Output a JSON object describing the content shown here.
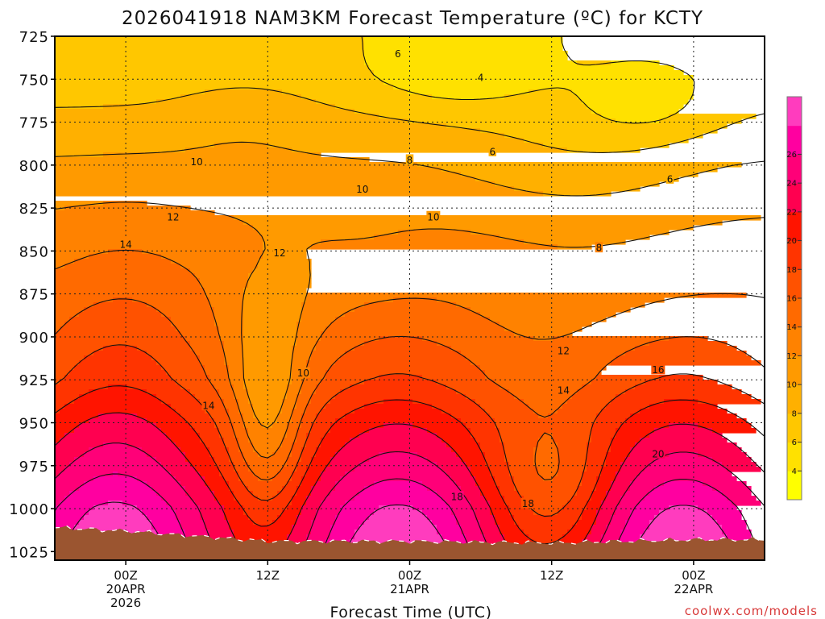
{
  "header": {
    "title": "2026041918 NAM3KM Forecast Temperature (ºC) for KCTY"
  },
  "footer": {
    "credit": "coolwx.com/models"
  },
  "colors": {
    "ground": "#9b5530",
    "contour": "#111111",
    "gridline": "#222222"
  },
  "chart_data": {
    "type": "heatmap",
    "title": "2026041918 NAM3KM Forecast Temperature (ºC) for KCTY",
    "xlabel": "Forecast Time (UTC)",
    "ylabel": "",
    "x_range_hours": [
      -6,
      54
    ],
    "y_range_hPa": [
      725,
      1030
    ],
    "y_ticks": [
      725,
      750,
      775,
      800,
      825,
      850,
      875,
      900,
      925,
      950,
      975,
      1000,
      1025
    ],
    "x_ticks": [
      {
        "hour": 0,
        "lines": [
          "00Z",
          "20APR",
          "2026"
        ]
      },
      {
        "hour": 12,
        "lines": [
          "12Z"
        ]
      },
      {
        "hour": 24,
        "lines": [
          "00Z",
          "21APR"
        ]
      },
      {
        "hour": 36,
        "lines": [
          "12Z"
        ]
      },
      {
        "hour": 48,
        "lines": [
          "00Z",
          "22APR"
        ]
      }
    ],
    "colorbar": {
      "labels": [
        4,
        6,
        8,
        10,
        12,
        14,
        16,
        18,
        20,
        22,
        24,
        26
      ],
      "bands": [
        {
          "min": 2,
          "max": 4,
          "color": "#ffff00"
        },
        {
          "min": 4,
          "max": 6,
          "color": "#ffe100"
        },
        {
          "min": 6,
          "max": 8,
          "color": "#ffc700"
        },
        {
          "min": 8,
          "max": 10,
          "color": "#ffb000"
        },
        {
          "min": 10,
          "max": 12,
          "color": "#ff9a00"
        },
        {
          "min": 12,
          "max": 14,
          "color": "#ff8200"
        },
        {
          "min": 14,
          "max": 16,
          "color": "#ff6a00"
        },
        {
          "min": 16,
          "max": 18,
          "color": "#ff5200"
        },
        {
          "min": 18,
          "max": 20,
          "color": "#ff3400"
        },
        {
          "min": 20,
          "max": 22,
          "color": "#ff1400"
        },
        {
          "min": 22,
          "max": 24,
          "color": "#ff0050"
        },
        {
          "min": 24,
          "max": 26,
          "color": "#ff0078"
        },
        {
          "min": 26,
          "max": 28,
          "color": "#ff00a0"
        },
        {
          "min": 28,
          "max": 30,
          "color": "#ff3cbe"
        }
      ]
    },
    "contour_labels": [
      {
        "text": "6",
        "hour": 23,
        "p": 735
      },
      {
        "text": "4",
        "hour": 30,
        "p": 749
      },
      {
        "text": "6",
        "hour": 31,
        "p": 792
      },
      {
        "text": "8",
        "hour": 24,
        "p": 797
      },
      {
        "text": "10",
        "hour": 6,
        "p": 798
      },
      {
        "text": "10",
        "hour": 20,
        "p": 814
      },
      {
        "text": "10",
        "hour": 26,
        "p": 830
      },
      {
        "text": "12",
        "hour": 4,
        "p": 830
      },
      {
        "text": "14",
        "hour": 0,
        "p": 846
      },
      {
        "text": "12",
        "hour": 13,
        "p": 851
      },
      {
        "text": "8",
        "hour": 40,
        "p": 848
      },
      {
        "text": "6",
        "hour": 46,
        "p": 808
      },
      {
        "text": "12",
        "hour": 37,
        "p": 908
      },
      {
        "text": "10",
        "hour": 15,
        "p": 921
      },
      {
        "text": "14",
        "hour": 7,
        "p": 940
      },
      {
        "text": "14",
        "hour": 37,
        "p": 931
      },
      {
        "text": "16",
        "hour": 45,
        "p": 919
      },
      {
        "text": "20",
        "hour": 45,
        "p": 968
      },
      {
        "text": "18",
        "hour": 28,
        "p": 993
      },
      {
        "text": "18",
        "hour": 34,
        "p": 997
      }
    ],
    "field": {
      "base": [
        {
          "p": 725,
          "t": 6.3
        },
        {
          "p": 750,
          "t": 7.0
        },
        {
          "p": 775,
          "t": 8.5
        },
        {
          "p": 800,
          "t": 10.3
        },
        {
          "p": 825,
          "t": 11.8
        },
        {
          "p": 850,
          "t": 13.2
        },
        {
          "p": 875,
          "t": 14.2
        },
        {
          "p": 900,
          "t": 15.3
        },
        {
          "p": 925,
          "t": 16.8
        },
        {
          "p": 950,
          "t": 19.8
        },
        {
          "p": 975,
          "t": 22.3
        },
        {
          "p": 1000,
          "t": 25.0
        },
        {
          "p": 1025,
          "t": 26.5
        }
      ],
      "anomalies": [
        {
          "hour": 28,
          "p": 745,
          "dh": 7,
          "dp": 22,
          "a": -2.6
        },
        {
          "hour": 44,
          "p": 765,
          "dh": 6,
          "dp": 22,
          "a": -2.2
        },
        {
          "hour": 38,
          "p": 800,
          "dh": 10,
          "dp": 40,
          "a": -1.6
        },
        {
          "hour": 38,
          "p": 870,
          "dh": 12,
          "dp": 30,
          "a": -1.2
        },
        {
          "hour": 20,
          "p": 860,
          "dh": 6,
          "dp": 30,
          "a": -0.9
        },
        {
          "hour": 13,
          "p": 880,
          "dh": 5,
          "dp": 35,
          "a": -1.6
        },
        {
          "hour": 12,
          "p": 950,
          "dh": 3,
          "dp": 60,
          "a": -6.0
        },
        {
          "hour": 36,
          "p": 990,
          "dh": 5,
          "dp": 40,
          "a": -4.5
        },
        {
          "hour": 0,
          "p": 900,
          "dh": 6,
          "dp": 70,
          "a": 1.4
        },
        {
          "hour": 10,
          "p": 770,
          "dh": 6,
          "dp": 30,
          "a": 0.9
        }
      ],
      "diurnal_amplitude": 4.0,
      "diurnal_peak_hour": 23,
      "surface_pressure": [
        {
          "hour": -6,
          "p": 1011
        },
        {
          "hour": 0,
          "p": 1013
        },
        {
          "hour": 12,
          "p": 1019
        },
        {
          "hour": 24,
          "p": 1019
        },
        {
          "hour": 36,
          "p": 1020
        },
        {
          "hour": 48,
          "p": 1018
        },
        {
          "hour": 54,
          "p": 1018
        }
      ]
    }
  }
}
